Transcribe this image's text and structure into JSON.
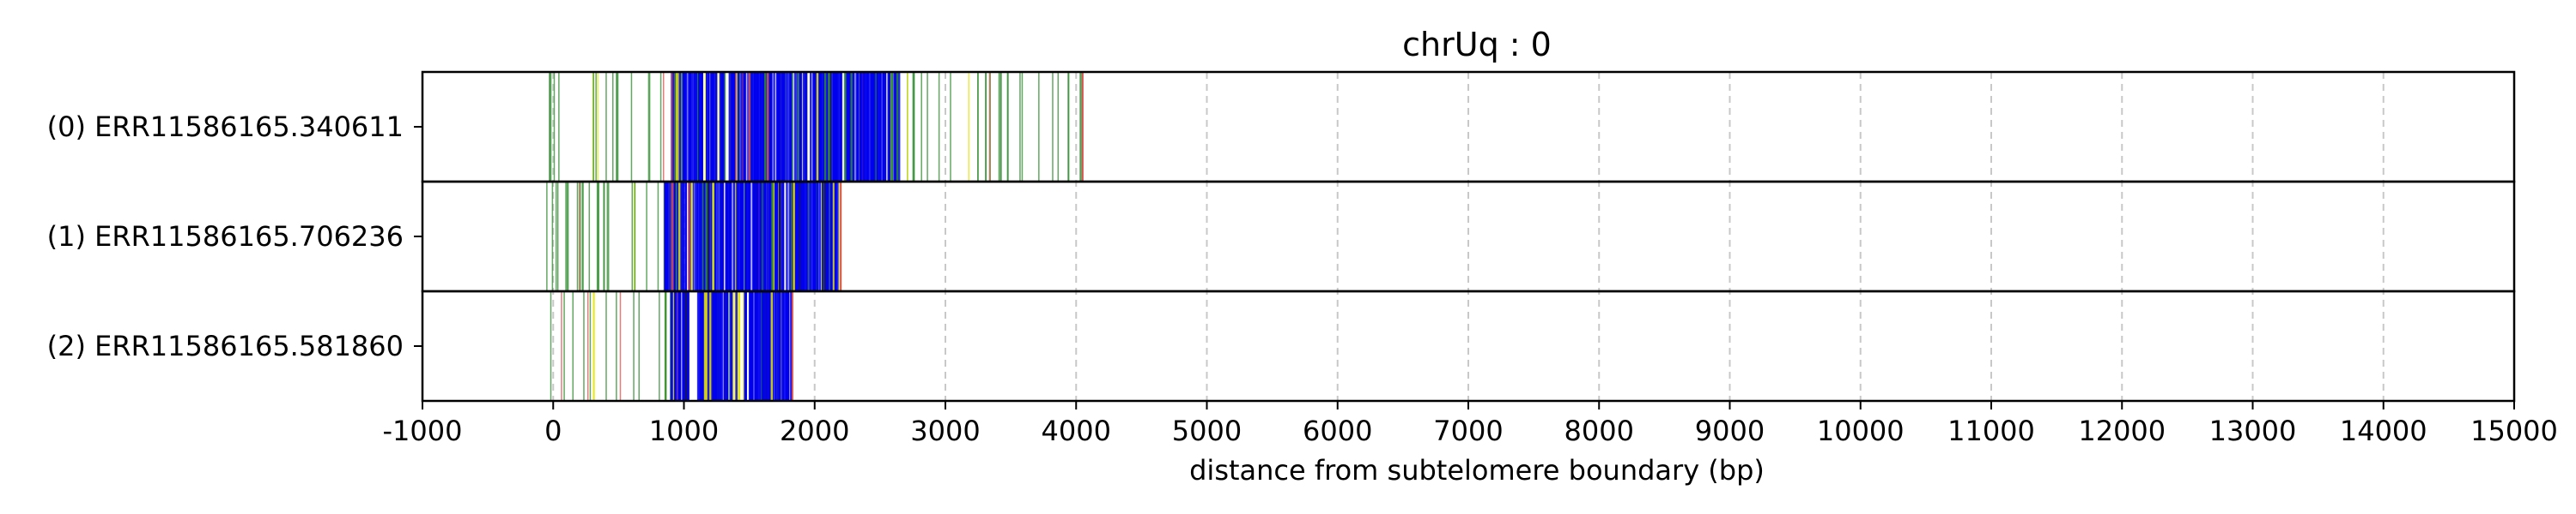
{
  "chart_data": {
    "type": "bar",
    "title": "chrUq : 0",
    "xlabel": "distance from subtelomere boundary (bp)",
    "ylabel": "",
    "xlim": [
      -1000,
      15000
    ],
    "x_ticks": [
      -1000,
      0,
      1000,
      2000,
      3000,
      4000,
      5000,
      6000,
      7000,
      8000,
      9000,
      10000,
      11000,
      12000,
      13000,
      14000,
      15000
    ],
    "x_tick_labels": [
      "-1000",
      "0",
      "1000",
      "2000",
      "3000",
      "4000",
      "5000",
      "6000",
      "7000",
      "8000",
      "9000",
      "10000",
      "11000",
      "12000",
      "13000",
      "14000",
      "15000"
    ],
    "grid": "vertical dashed at major ticks",
    "reads": [
      {
        "label": "(0) ERR11586165.340611",
        "read_end": 4050,
        "dense_start": 900,
        "dense_end": 2650,
        "sparse_start": -50,
        "sparse_end": 4050
      },
      {
        "label": "(1) ERR11586165.706236",
        "read_end": 2200,
        "dense_start": 850,
        "dense_end": 2200,
        "sparse_start": -50,
        "sparse_end": 2200
      },
      {
        "label": "(2) ERR11586165.581860",
        "read_end": 1830,
        "dense_start": 900,
        "dense_end": 1830,
        "sparse_start": -50,
        "sparse_end": 1830
      }
    ],
    "colors": {
      "dense_mark": "#0000ee",
      "sparse_mark": "#2e8b2e",
      "highlight_mark": "#e6e600",
      "alt_mark": "#d9534f",
      "dark_mark": "#1a1a4a",
      "grid": "#c8c8c8",
      "axes": "#000000"
    }
  }
}
